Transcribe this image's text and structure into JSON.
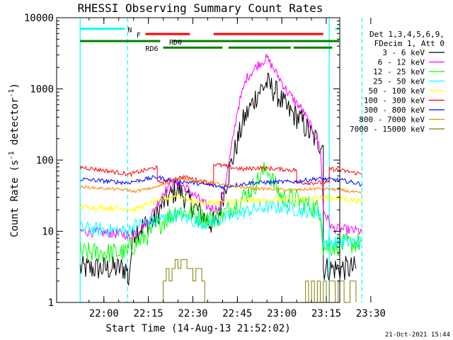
{
  "chart_data": {
    "type": "line",
    "title": "RHESSI Observing Summary Count Rates",
    "ylabel_main": "Count Rate (s",
    "ylabel_sup1": "-1",
    "ylabel_mid": " detector",
    "ylabel_sup2": "-1",
    "ylabel_end": ")",
    "xlabel": "Start Time (14-Aug-13 21:52:02)",
    "timestamp": "21-Oct-2021 15:44",
    "y_log": true,
    "ylim": [
      1,
      10000
    ],
    "xlim_minutes": [
      -7.97,
      87.5
    ],
    "x_origin": "21:52:02",
    "y_ticks": [
      {
        "value": 1,
        "label": "1"
      },
      {
        "value": 10,
        "label": "10"
      },
      {
        "value": 100,
        "label": "100"
      },
      {
        "value": 1000,
        "label": "1000"
      },
      {
        "value": 10000,
        "label": "10000"
      }
    ],
    "x_ticks": [
      {
        "time": "22:00",
        "label": "22:00"
      },
      {
        "time": "22:15",
        "label": "22:15"
      },
      {
        "time": "22:30",
        "label": "22:30"
      },
      {
        "time": "22:45",
        "label": "22:45"
      },
      {
        "time": "23:00",
        "label": "23:00"
      },
      {
        "time": "23:15",
        "label": "23:15"
      },
      {
        "time": "23:30",
        "label": "23:30"
      }
    ],
    "legend_header": [
      "Det 1,3,4,5,6,9,",
      "FDecim 1, Att 0"
    ],
    "legend_placement": "right",
    "series": [
      {
        "name": "3 - 6 keV",
        "color": "#000000",
        "noise": 0.18,
        "points": [
          [
            "21:52",
            3
          ],
          [
            "22:08",
            3
          ],
          [
            "22:08",
            1.6
          ],
          [
            "22:10",
            10
          ],
          [
            "22:17",
            14
          ],
          [
            "22:20",
            25
          ],
          [
            "22:25",
            40
          ],
          [
            "22:28",
            28
          ],
          [
            "22:35",
            14
          ],
          [
            "22:38",
            12
          ],
          [
            "22:40",
            30
          ],
          [
            "22:43",
            90
          ],
          [
            "22:47",
            350
          ],
          [
            "22:52",
            900
          ],
          [
            "22:55",
            1200
          ],
          [
            "22:58",
            900
          ],
          [
            "23:02",
            500
          ],
          [
            "23:06",
            380
          ],
          [
            "23:10",
            220
          ],
          [
            "23:14",
            160
          ],
          [
            "23:14",
            3
          ],
          [
            "23:25",
            3
          ]
        ]
      },
      {
        "name": "6 - 12 keV",
        "color": "#ff00ff",
        "noise": 0.07,
        "points": [
          [
            "21:52",
            10
          ],
          [
            "22:08",
            9
          ],
          [
            "22:08",
            8
          ],
          [
            "22:15",
            14
          ],
          [
            "22:20",
            35
          ],
          [
            "22:24",
            50
          ],
          [
            "22:28",
            40
          ],
          [
            "22:35",
            22
          ],
          [
            "22:39",
            20
          ],
          [
            "22:42",
            80
          ],
          [
            "22:45",
            500
          ],
          [
            "22:48",
            1400
          ],
          [
            "22:52",
            2200
          ],
          [
            "22:55",
            2700
          ],
          [
            "22:57",
            2000
          ],
          [
            "23:02",
            900
          ],
          [
            "23:07",
            500
          ],
          [
            "23:10",
            280
          ],
          [
            "23:13",
            150
          ],
          [
            "23:14",
            20
          ],
          [
            "23:17",
            11
          ],
          [
            "23:27",
            10
          ]
        ]
      },
      {
        "name": "12 - 25 keV",
        "color": "#00ff00",
        "noise": 0.15,
        "points": [
          [
            "21:52",
            5
          ],
          [
            "22:08",
            5
          ],
          [
            "22:08",
            5.5
          ],
          [
            "22:15",
            9
          ],
          [
            "22:20",
            14
          ],
          [
            "22:25",
            20
          ],
          [
            "22:28",
            18
          ],
          [
            "22:35",
            15
          ],
          [
            "22:40",
            17
          ],
          [
            "22:45",
            25
          ],
          [
            "22:50",
            40
          ],
          [
            "22:53",
            60
          ],
          [
            "22:55",
            80
          ],
          [
            "22:57",
            50
          ],
          [
            "23:00",
            30
          ],
          [
            "23:05",
            28
          ],
          [
            "23:10",
            22
          ],
          [
            "23:13",
            20
          ],
          [
            "23:14",
            6
          ],
          [
            "23:27",
            7
          ]
        ]
      },
      {
        "name": "25 - 50 keV",
        "color": "#00ffff",
        "noise": 0.1,
        "points": [
          [
            "21:52",
            11
          ],
          [
            "22:08",
            10
          ],
          [
            "22:10",
            12
          ],
          [
            "22:20",
            15
          ],
          [
            "22:25",
            17
          ],
          [
            "22:30",
            14
          ],
          [
            "22:35",
            13
          ],
          [
            "22:40",
            15
          ],
          [
            "22:50",
            20
          ],
          [
            "22:55",
            22
          ],
          [
            "23:00",
            22
          ],
          [
            "23:05",
            20
          ],
          [
            "23:13",
            18
          ],
          [
            "23:14",
            7
          ],
          [
            "23:27",
            7
          ]
        ]
      },
      {
        "name": "50 - 100 keV",
        "color": "#ffff00",
        "noise": 0.04,
        "points": [
          [
            "21:52",
            22
          ],
          [
            "22:08",
            21
          ],
          [
            "22:10",
            20
          ],
          [
            "22:15",
            24
          ],
          [
            "22:20",
            28
          ],
          [
            "22:25",
            32
          ],
          [
            "22:30",
            26
          ],
          [
            "22:36",
            25
          ],
          [
            "22:40",
            26
          ],
          [
            "22:50",
            27
          ],
          [
            "23:05",
            28
          ],
          [
            "23:13",
            30
          ],
          [
            "23:20",
            29
          ],
          [
            "23:27",
            26
          ]
        ]
      },
      {
        "name": "100 - 300 keV",
        "color": "#ff0000",
        "noise": 0.03,
        "points": [
          [
            "21:52",
            80
          ],
          [
            "22:08",
            64
          ],
          [
            "22:08",
            62
          ],
          [
            "22:18",
            80
          ],
          [
            "22:18",
            48
          ],
          [
            "22:27",
            58
          ],
          [
            "22:37",
            46
          ],
          [
            "22:37",
            88
          ],
          [
            "22:47",
            74
          ],
          [
            "22:52",
            78
          ],
          [
            "23:05",
            72
          ],
          [
            "23:05",
            48
          ],
          [
            "23:16",
            48
          ],
          [
            "23:16",
            76
          ],
          [
            "23:27",
            64
          ]
        ]
      },
      {
        "name": "300 - 800 keV",
        "color": "#0000ff",
        "noise": 0.03,
        "points": [
          [
            "21:52",
            54
          ],
          [
            "22:08",
            48
          ],
          [
            "22:10",
            50
          ],
          [
            "22:18",
            58
          ],
          [
            "22:22",
            52
          ],
          [
            "22:30",
            48
          ],
          [
            "22:40",
            42
          ],
          [
            "22:50",
            48
          ],
          [
            "23:05",
            50
          ],
          [
            "23:12",
            55
          ],
          [
            "23:20",
            52
          ],
          [
            "23:27",
            46
          ]
        ]
      },
      {
        "name": "800 - 7000 keV",
        "color": "#ff8000",
        "noise": 0.02,
        "points": [
          [
            "21:52",
            42
          ],
          [
            "22:08",
            38
          ],
          [
            "22:10",
            36
          ],
          [
            "22:18",
            42
          ],
          [
            "22:25",
            55
          ],
          [
            "22:35",
            50
          ],
          [
            "22:40",
            45
          ],
          [
            "22:50",
            40
          ],
          [
            "23:05",
            38
          ],
          [
            "23:13",
            40
          ],
          [
            "23:20",
            38
          ],
          [
            "23:27",
            34
          ]
        ]
      },
      {
        "name": "7000 - 15000 keV",
        "color": "#808000",
        "noise": 0,
        "points": [
          [
            "22:17",
            1
          ],
          [
            "22:19",
            1
          ],
          [
            "22:20",
            2
          ],
          [
            "22:21",
            3
          ],
          [
            "22:22",
            2
          ],
          [
            "22:23",
            3
          ],
          [
            "22:24",
            4
          ],
          [
            "22:25",
            3
          ],
          [
            "22:26",
            4
          ],
          [
            "22:28",
            3
          ],
          [
            "22:30",
            2
          ],
          [
            "22:31",
            3
          ],
          [
            "22:33",
            2
          ],
          [
            "22:34",
            1
          ],
          [
            "23:07",
            1
          ],
          [
            "23:08",
            2
          ],
          [
            "23:09",
            1
          ],
          [
            "23:10",
            2
          ],
          [
            "23:11",
            1
          ],
          [
            "23:12",
            2
          ],
          [
            "23:13",
            1
          ],
          [
            "23:14",
            2
          ],
          [
            "23:15",
            1
          ],
          [
            "23:16",
            2
          ],
          [
            "23:18",
            1
          ],
          [
            "23:19",
            2
          ],
          [
            "23:21",
            1
          ],
          [
            "23:23",
            2
          ],
          [
            "23:25",
            1
          ]
        ]
      }
    ],
    "state_bars": [
      {
        "label": "N",
        "color": "#00ffff",
        "y": 7000,
        "segments": [
          [
            "21:52",
            "22:07"
          ],
          [
            "23:18",
            "23:27"
          ]
        ],
        "label_at": "22:08"
      },
      {
        "label": "F",
        "color": "#ff0000",
        "y": 5900,
        "segments": [
          [
            "22:14",
            "22:29"
          ],
          [
            "22:37",
            "23:14"
          ]
        ],
        "label_at": "22:11"
      },
      {
        "label": "RD0",
        "color": "#008000",
        "y": 4700,
        "segments": [
          [
            "21:52",
            "22:19"
          ],
          [
            "22:23",
            "23:27"
          ]
        ],
        "label_at": "22:22"
      },
      {
        "label": "RD6",
        "color": "#008000",
        "y": 3800,
        "segments": [
          [
            "22:20",
            "22:40"
          ],
          [
            "22:42",
            "23:03"
          ],
          [
            "23:04",
            "23:17"
          ]
        ],
        "label_at": "22:14"
      }
    ],
    "vertical_markers": [
      {
        "time": "21:52",
        "style": "solid",
        "color": "#00ffff"
      },
      {
        "time": "22:08",
        "style": "dashed",
        "color": "#00ffff"
      },
      {
        "time": "23:16",
        "style": "solid",
        "color": "#00ffff"
      },
      {
        "time": "23:27",
        "style": "dashed",
        "color": "#00ffff"
      }
    ]
  }
}
